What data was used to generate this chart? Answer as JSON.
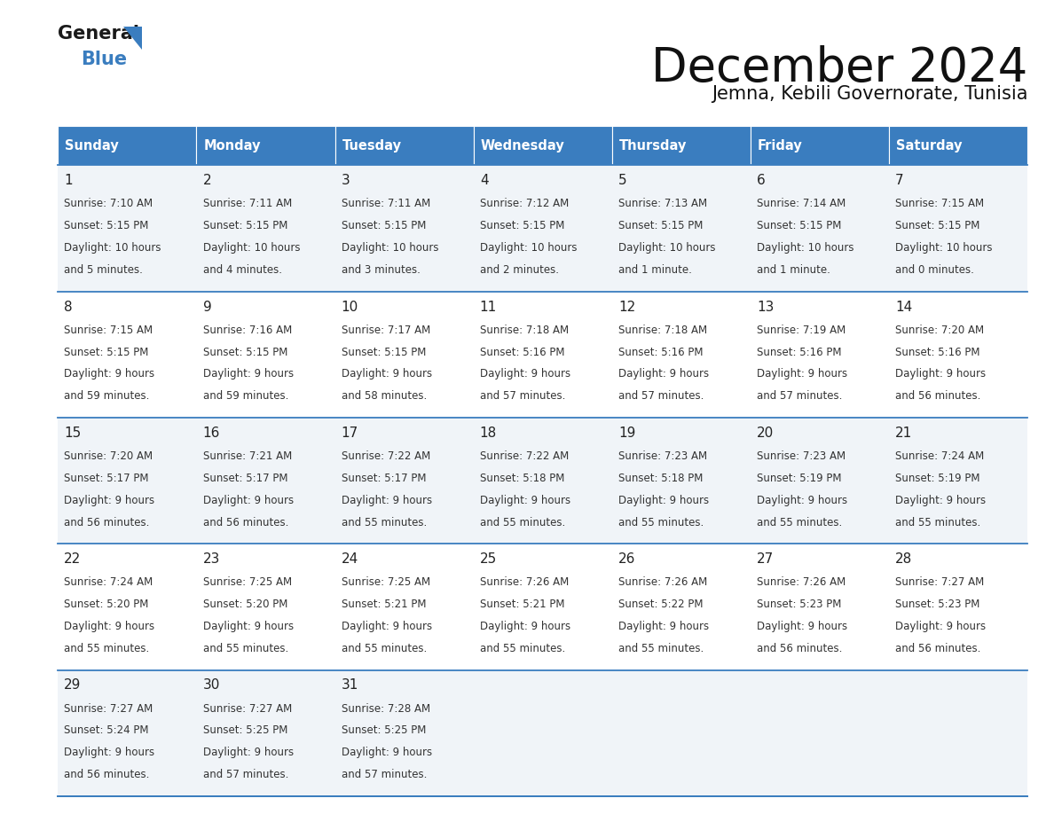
{
  "title": "December 2024",
  "subtitle": "Jemna, Kebili Governorate, Tunisia",
  "header_color": "#3a7dbf",
  "header_text_color": "#ffffff",
  "cell_bg_odd": "#f0f4f8",
  "cell_bg_even": "#ffffff",
  "text_color": "#333333",
  "border_color": "#3a7dbf",
  "days_of_week": [
    "Sunday",
    "Monday",
    "Tuesday",
    "Wednesday",
    "Thursday",
    "Friday",
    "Saturday"
  ],
  "calendar_data": [
    [
      {
        "day": "1",
        "sunrise": "7:10 AM",
        "sunset": "5:15 PM",
        "daylight_line1": "Daylight: 10 hours",
        "daylight_line2": "and 5 minutes."
      },
      {
        "day": "2",
        "sunrise": "7:11 AM",
        "sunset": "5:15 PM",
        "daylight_line1": "Daylight: 10 hours",
        "daylight_line2": "and 4 minutes."
      },
      {
        "day": "3",
        "sunrise": "7:11 AM",
        "sunset": "5:15 PM",
        "daylight_line1": "Daylight: 10 hours",
        "daylight_line2": "and 3 minutes."
      },
      {
        "day": "4",
        "sunrise": "7:12 AM",
        "sunset": "5:15 PM",
        "daylight_line1": "Daylight: 10 hours",
        "daylight_line2": "and 2 minutes."
      },
      {
        "day": "5",
        "sunrise": "7:13 AM",
        "sunset": "5:15 PM",
        "daylight_line1": "Daylight: 10 hours",
        "daylight_line2": "and 1 minute."
      },
      {
        "day": "6",
        "sunrise": "7:14 AM",
        "sunset": "5:15 PM",
        "daylight_line1": "Daylight: 10 hours",
        "daylight_line2": "and 1 minute."
      },
      {
        "day": "7",
        "sunrise": "7:15 AM",
        "sunset": "5:15 PM",
        "daylight_line1": "Daylight: 10 hours",
        "daylight_line2": "and 0 minutes."
      }
    ],
    [
      {
        "day": "8",
        "sunrise": "7:15 AM",
        "sunset": "5:15 PM",
        "daylight_line1": "Daylight: 9 hours",
        "daylight_line2": "and 59 minutes."
      },
      {
        "day": "9",
        "sunrise": "7:16 AM",
        "sunset": "5:15 PM",
        "daylight_line1": "Daylight: 9 hours",
        "daylight_line2": "and 59 minutes."
      },
      {
        "day": "10",
        "sunrise": "7:17 AM",
        "sunset": "5:15 PM",
        "daylight_line1": "Daylight: 9 hours",
        "daylight_line2": "and 58 minutes."
      },
      {
        "day": "11",
        "sunrise": "7:18 AM",
        "sunset": "5:16 PM",
        "daylight_line1": "Daylight: 9 hours",
        "daylight_line2": "and 57 minutes."
      },
      {
        "day": "12",
        "sunrise": "7:18 AM",
        "sunset": "5:16 PM",
        "daylight_line1": "Daylight: 9 hours",
        "daylight_line2": "and 57 minutes."
      },
      {
        "day": "13",
        "sunrise": "7:19 AM",
        "sunset": "5:16 PM",
        "daylight_line1": "Daylight: 9 hours",
        "daylight_line2": "and 57 minutes."
      },
      {
        "day": "14",
        "sunrise": "7:20 AM",
        "sunset": "5:16 PM",
        "daylight_line1": "Daylight: 9 hours",
        "daylight_line2": "and 56 minutes."
      }
    ],
    [
      {
        "day": "15",
        "sunrise": "7:20 AM",
        "sunset": "5:17 PM",
        "daylight_line1": "Daylight: 9 hours",
        "daylight_line2": "and 56 minutes."
      },
      {
        "day": "16",
        "sunrise": "7:21 AM",
        "sunset": "5:17 PM",
        "daylight_line1": "Daylight: 9 hours",
        "daylight_line2": "and 56 minutes."
      },
      {
        "day": "17",
        "sunrise": "7:22 AM",
        "sunset": "5:17 PM",
        "daylight_line1": "Daylight: 9 hours",
        "daylight_line2": "and 55 minutes."
      },
      {
        "day": "18",
        "sunrise": "7:22 AM",
        "sunset": "5:18 PM",
        "daylight_line1": "Daylight: 9 hours",
        "daylight_line2": "and 55 minutes."
      },
      {
        "day": "19",
        "sunrise": "7:23 AM",
        "sunset": "5:18 PM",
        "daylight_line1": "Daylight: 9 hours",
        "daylight_line2": "and 55 minutes."
      },
      {
        "day": "20",
        "sunrise": "7:23 AM",
        "sunset": "5:19 PM",
        "daylight_line1": "Daylight: 9 hours",
        "daylight_line2": "and 55 minutes."
      },
      {
        "day": "21",
        "sunrise": "7:24 AM",
        "sunset": "5:19 PM",
        "daylight_line1": "Daylight: 9 hours",
        "daylight_line2": "and 55 minutes."
      }
    ],
    [
      {
        "day": "22",
        "sunrise": "7:24 AM",
        "sunset": "5:20 PM",
        "daylight_line1": "Daylight: 9 hours",
        "daylight_line2": "and 55 minutes."
      },
      {
        "day": "23",
        "sunrise": "7:25 AM",
        "sunset": "5:20 PM",
        "daylight_line1": "Daylight: 9 hours",
        "daylight_line2": "and 55 minutes."
      },
      {
        "day": "24",
        "sunrise": "7:25 AM",
        "sunset": "5:21 PM",
        "daylight_line1": "Daylight: 9 hours",
        "daylight_line2": "and 55 minutes."
      },
      {
        "day": "25",
        "sunrise": "7:26 AM",
        "sunset": "5:21 PM",
        "daylight_line1": "Daylight: 9 hours",
        "daylight_line2": "and 55 minutes."
      },
      {
        "day": "26",
        "sunrise": "7:26 AM",
        "sunset": "5:22 PM",
        "daylight_line1": "Daylight: 9 hours",
        "daylight_line2": "and 55 minutes."
      },
      {
        "day": "27",
        "sunrise": "7:26 AM",
        "sunset": "5:23 PM",
        "daylight_line1": "Daylight: 9 hours",
        "daylight_line2": "and 56 minutes."
      },
      {
        "day": "28",
        "sunrise": "7:27 AM",
        "sunset": "5:23 PM",
        "daylight_line1": "Daylight: 9 hours",
        "daylight_line2": "and 56 minutes."
      }
    ],
    [
      {
        "day": "29",
        "sunrise": "7:27 AM",
        "sunset": "5:24 PM",
        "daylight_line1": "Daylight: 9 hours",
        "daylight_line2": "and 56 minutes."
      },
      {
        "day": "30",
        "sunrise": "7:27 AM",
        "sunset": "5:25 PM",
        "daylight_line1": "Daylight: 9 hours",
        "daylight_line2": "and 57 minutes."
      },
      {
        "day": "31",
        "sunrise": "7:28 AM",
        "sunset": "5:25 PM",
        "daylight_line1": "Daylight: 9 hours",
        "daylight_line2": "and 57 minutes."
      },
      null,
      null,
      null,
      null
    ]
  ]
}
